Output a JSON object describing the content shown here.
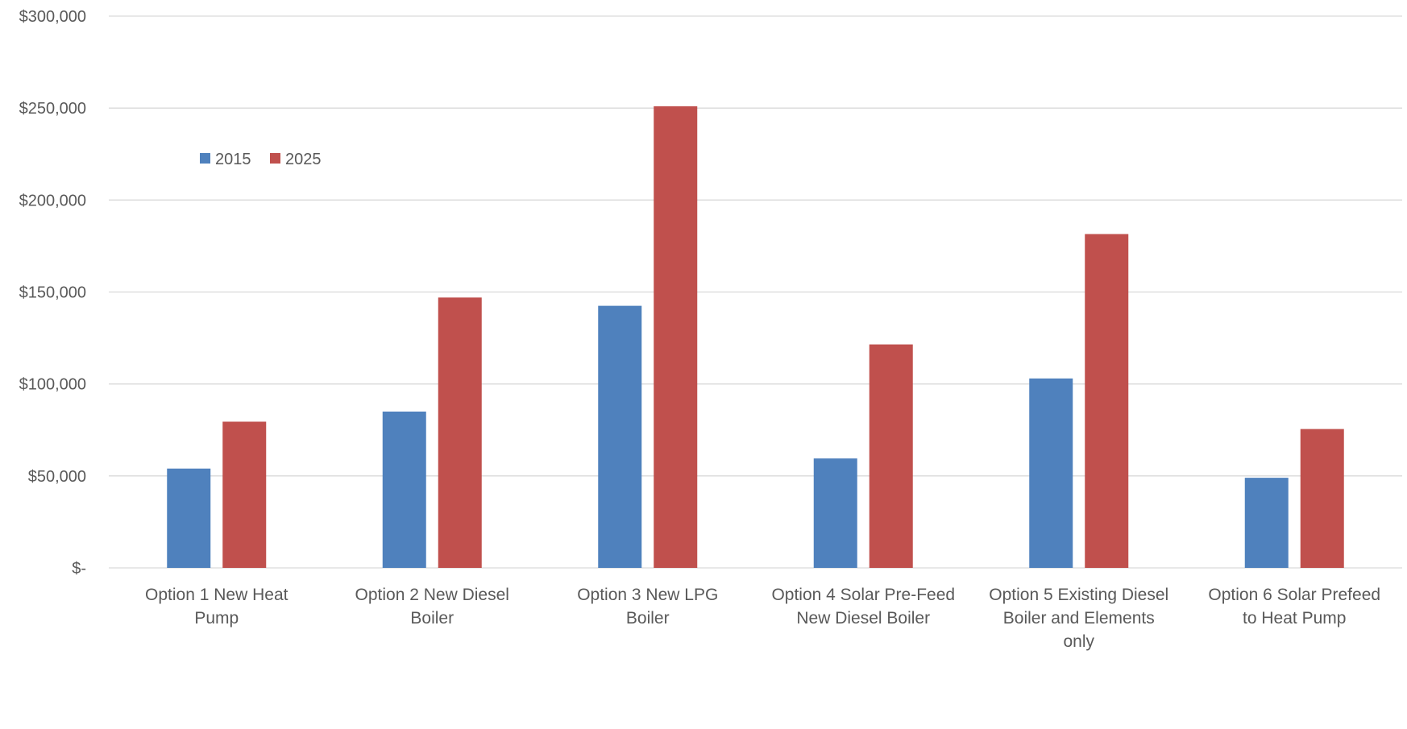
{
  "chart_data": {
    "type": "bar",
    "title": "",
    "xlabel": "",
    "ylabel": "",
    "categories": [
      [
        "Option 1 New Heat",
        "Pump"
      ],
      [
        "Option 2 New Diesel",
        "Boiler"
      ],
      [
        "Option 3 New LPG",
        "Boiler"
      ],
      [
        "Option 4 Solar Pre-Feed",
        "New Diesel Boiler"
      ],
      [
        "Option 5 Existing Diesel",
        "Boiler and Elements",
        "only"
      ],
      [
        "Option 6 Solar Prefeed",
        "to Heat Pump"
      ]
    ],
    "series": [
      {
        "name": "2015",
        "color": "#4f81bd",
        "values": [
          54000,
          85000,
          142500,
          59500,
          103000,
          49000
        ]
      },
      {
        "name": "2025",
        "color": "#c0504d",
        "values": [
          79500,
          147000,
          251000,
          121500,
          181500,
          75500
        ]
      }
    ],
    "ylim": [
      0,
      300000
    ],
    "yticks": [
      0,
      50000,
      100000,
      150000,
      200000,
      250000,
      300000
    ],
    "ytick_labels": [
      "$-",
      "$50,000",
      "$100,000",
      "$150,000",
      "$200,000",
      "$250,000",
      "$300,000"
    ],
    "grid": true,
    "gridline_color": "#d9d9d9",
    "legend_position": "upper-left-inside"
  }
}
